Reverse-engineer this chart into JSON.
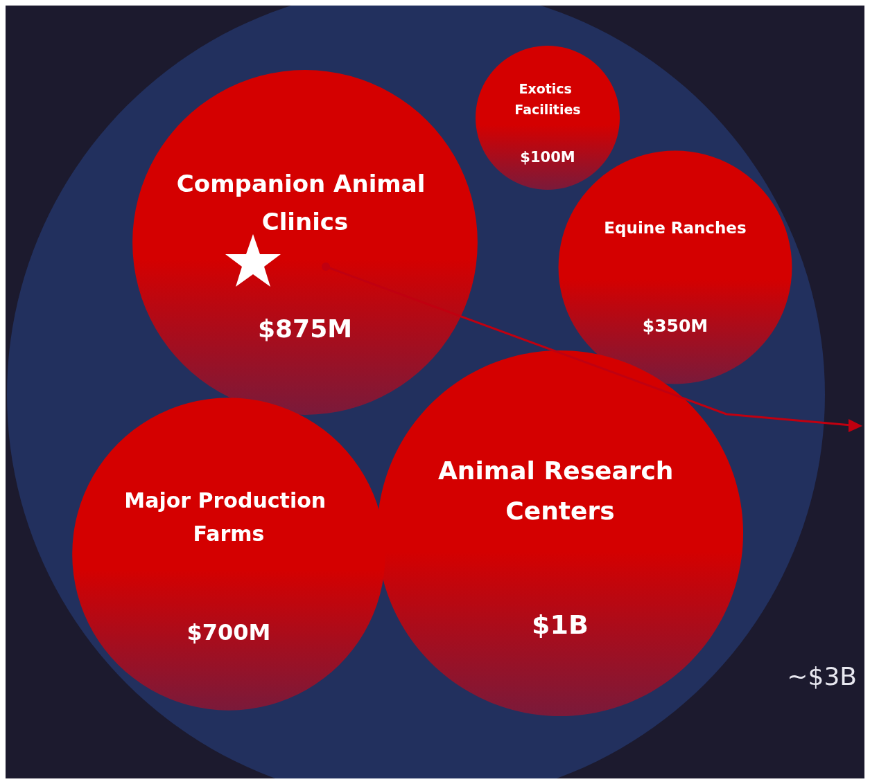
{
  "chart_data": {
    "type": "other",
    "categories": [
      "Companion Animal Clinics",
      "Exotics Facilities",
      "Equine Ranches",
      "Animal Research Centers",
      "Major Production Farms"
    ],
    "values": [
      875000000,
      100000000,
      350000000,
      1000000000,
      700000000
    ],
    "value_labels": [
      "$875M",
      "$100M",
      "$350M",
      "$1B",
      "$700M"
    ],
    "colors": [
      "#d40000",
      "#d40000",
      "#d40000",
      "#d40000",
      "#d40000"
    ],
    "annotations": [
      "~$3B"
    ]
  }
}
